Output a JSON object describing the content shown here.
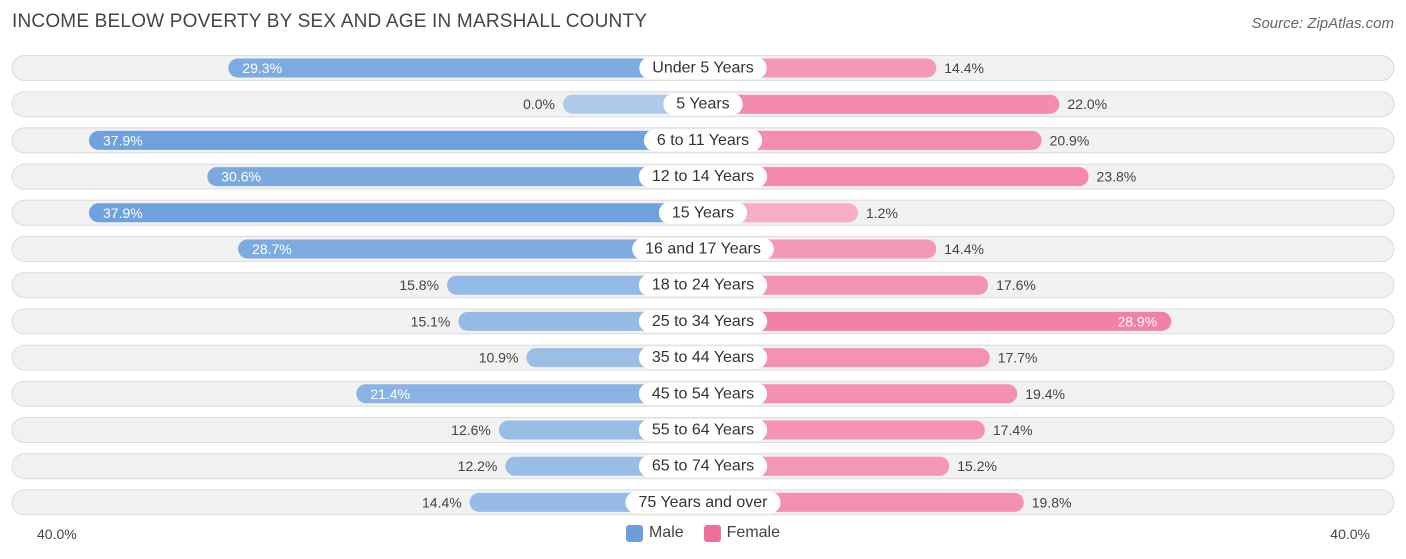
{
  "title": "INCOME BELOW POVERTY BY SEX AND AGE IN MARSHALL COUNTY",
  "source": "Source: ZipAtlas.com",
  "axis": {
    "left_label": "40.0%",
    "right_label": "40.0%"
  },
  "legend": {
    "male_label": "Male",
    "female_label": "Female"
  },
  "colors": {
    "male": "#6a9fdc",
    "male_light": "#aac8ec",
    "female": "#f06e9a",
    "female_light": "#f7aac4"
  },
  "chart_data": {
    "type": "bar",
    "orientation": "horizontal-diverging",
    "title": "INCOME BELOW POVERTY BY SEX AND AGE IN MARSHALL COUNTY",
    "xlim": [
      -40,
      40
    ],
    "categories": [
      "Under 5 Years",
      "5 Years",
      "6 to 11 Years",
      "12 to 14 Years",
      "15 Years",
      "16 and 17 Years",
      "18 to 24 Years",
      "25 to 34 Years",
      "35 to 44 Years",
      "45 to 54 Years",
      "55 to 64 Years",
      "65 to 74 Years",
      "75 Years and over"
    ],
    "series": [
      {
        "name": "Male",
        "values": [
          29.3,
          0.0,
          37.9,
          30.6,
          37.9,
          28.7,
          15.8,
          15.1,
          10.9,
          21.4,
          12.6,
          12.2,
          14.4
        ],
        "labels": [
          "29.3%",
          "0.0%",
          "37.9%",
          "30.6%",
          "37.9%",
          "28.7%",
          "15.8%",
          "15.1%",
          "10.9%",
          "21.4%",
          "12.6%",
          "12.2%",
          "14.4%"
        ]
      },
      {
        "name": "Female",
        "values": [
          14.4,
          22.0,
          20.9,
          23.8,
          1.2,
          14.4,
          17.6,
          28.9,
          17.7,
          19.4,
          17.4,
          15.2,
          19.8
        ],
        "labels": [
          "14.4%",
          "22.0%",
          "20.9%",
          "23.8%",
          "1.2%",
          "14.4%",
          "17.6%",
          "28.9%",
          "17.7%",
          "19.4%",
          "17.4%",
          "15.2%",
          "19.8%"
        ]
      }
    ]
  }
}
